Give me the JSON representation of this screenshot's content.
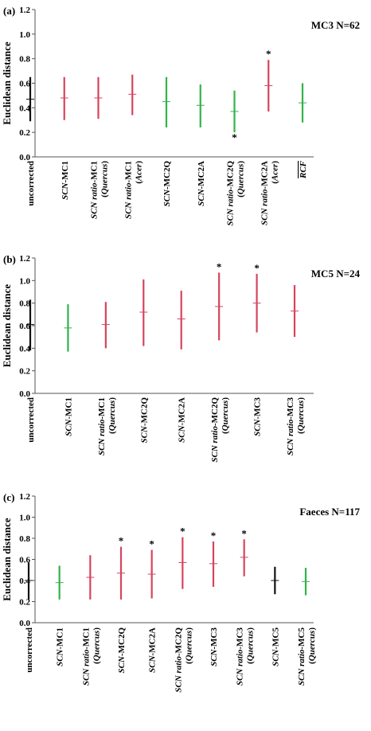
{
  "colors": {
    "black": "#111111",
    "red": "#d6445e",
    "green": "#33b24a"
  },
  "panels": [
    {
      "panel_label": "(a)",
      "header": "MC3 N=62",
      "chart_data": {
        "type": "range",
        "ylabel": "Euclidean distance",
        "ylim": [
          0,
          1.2
        ],
        "yticks": [
          "0.0",
          "0.2",
          "0.4",
          "0.6",
          "0.8",
          "1.0",
          "1.2"
        ],
        "series": [
          {
            "label": [
              {
                "t": "uncorrected",
                "i": false
              }
            ],
            "low": 0.29,
            "high": 0.65,
            "mean": 0.47,
            "color": "black",
            "sig": ""
          },
          {
            "label": [
              {
                "t": "SCN",
                "i": true
              },
              {
                "t": "-MC1",
                "i": false
              }
            ],
            "low": 0.3,
            "high": 0.65,
            "mean": 0.48,
            "color": "red",
            "sig": ""
          },
          {
            "label": [
              {
                "t": "SCN ratio",
                "i": true
              },
              {
                "t": "-MC1",
                "i": false
              },
              {
                "br": true
              },
              {
                "t": "(",
                "i": false
              },
              {
                "t": "Quercus",
                "i": true
              },
              {
                "t": ")",
                "i": false
              }
            ],
            "low": 0.31,
            "high": 0.65,
            "mean": 0.48,
            "color": "red",
            "sig": ""
          },
          {
            "label": [
              {
                "t": "SCN ratio",
                "i": true
              },
              {
                "t": "-MC1",
                "i": false
              },
              {
                "br": true
              },
              {
                "t": "(",
                "i": false
              },
              {
                "t": "Acer",
                "i": true
              },
              {
                "t": ")",
                "i": false
              }
            ],
            "low": 0.34,
            "high": 0.67,
            "mean": 0.51,
            "color": "red",
            "sig": ""
          },
          {
            "label": [
              {
                "t": "SCN",
                "i": true
              },
              {
                "t": "-MC2Q",
                "i": false
              }
            ],
            "low": 0.24,
            "high": 0.65,
            "mean": 0.45,
            "color": "green",
            "sig": ""
          },
          {
            "label": [
              {
                "t": "SCN",
                "i": true
              },
              {
                "t": "-MC2A",
                "i": false
              }
            ],
            "low": 0.24,
            "high": 0.59,
            "mean": 0.42,
            "color": "green",
            "sig": ""
          },
          {
            "label": [
              {
                "t": "SCN ratio",
                "i": true
              },
              {
                "t": "-MC2Q",
                "i": false
              },
              {
                "br": true
              },
              {
                "t": "(",
                "i": false
              },
              {
                "t": "Quercus",
                "i": true
              },
              {
                "t": ")",
                "i": false
              }
            ],
            "low": 0.2,
            "high": 0.54,
            "mean": 0.37,
            "color": "green",
            "sig": "below"
          },
          {
            "label": [
              {
                "t": "SCN ratio",
                "i": true
              },
              {
                "t": "-MC2A",
                "i": false
              },
              {
                "br": true
              },
              {
                "t": "(",
                "i": false
              },
              {
                "t": "Acer",
                "i": true
              },
              {
                "t": ")",
                "i": false
              }
            ],
            "low": 0.37,
            "high": 0.79,
            "mean": 0.58,
            "color": "red",
            "sig": "above"
          },
          {
            "label": [
              {
                "t": "RCF",
                "i": true,
                "overline": true
              }
            ],
            "low": 0.28,
            "high": 0.6,
            "mean": 0.44,
            "color": "green",
            "sig": ""
          }
        ]
      }
    },
    {
      "panel_label": "(b)",
      "header": "MC5 N=24",
      "chart_data": {
        "type": "range",
        "ylabel": "Euclidean distance",
        "ylim": [
          0,
          1.2
        ],
        "yticks": [
          "0.0",
          "0.2",
          "0.4",
          "0.6",
          "0.8",
          "1.0",
          "1.2"
        ],
        "series": [
          {
            "label": [
              {
                "t": "uncorrected",
                "i": false
              }
            ],
            "low": 0.38,
            "high": 0.83,
            "mean": 0.61,
            "color": "black",
            "sig": ""
          },
          {
            "label": [
              {
                "t": "SCN",
                "i": true
              },
              {
                "t": "-MC1",
                "i": false
              }
            ],
            "low": 0.37,
            "high": 0.79,
            "mean": 0.58,
            "color": "green",
            "sig": ""
          },
          {
            "label": [
              {
                "t": "SCN ratio",
                "i": true
              },
              {
                "t": "-MC1",
                "i": false
              },
              {
                "br": true
              },
              {
                "t": "(",
                "i": false
              },
              {
                "t": "Quercus",
                "i": true
              },
              {
                "t": ")",
                "i": false
              }
            ],
            "low": 0.4,
            "high": 0.81,
            "mean": 0.61,
            "color": "red",
            "sig": ""
          },
          {
            "label": [
              {
                "t": "SCN",
                "i": true
              },
              {
                "t": "-MC2Q",
                "i": false
              }
            ],
            "low": 0.42,
            "high": 1.01,
            "mean": 0.72,
            "color": "red",
            "sig": ""
          },
          {
            "label": [
              {
                "t": "SCN",
                "i": true
              },
              {
                "t": "-MC2A",
                "i": false
              }
            ],
            "low": 0.39,
            "high": 0.91,
            "mean": 0.66,
            "color": "red",
            "sig": ""
          },
          {
            "label": [
              {
                "t": "SCN ratio",
                "i": true
              },
              {
                "t": "-MC2Q",
                "i": false
              },
              {
                "br": true
              },
              {
                "t": "(",
                "i": false
              },
              {
                "t": "Quercus",
                "i": true
              },
              {
                "t": ")",
                "i": false
              }
            ],
            "low": 0.47,
            "high": 1.07,
            "mean": 0.77,
            "color": "red",
            "sig": "above"
          },
          {
            "label": [
              {
                "t": "SCN",
                "i": true
              },
              {
                "t": "-MC3",
                "i": false
              }
            ],
            "low": 0.54,
            "high": 1.06,
            "mean": 0.8,
            "color": "red",
            "sig": "above"
          },
          {
            "label": [
              {
                "t": "SCN ratio",
                "i": true
              },
              {
                "t": "-MC3",
                "i": false
              },
              {
                "br": true
              },
              {
                "t": "(",
                "i": false
              },
              {
                "t": "Quercus",
                "i": true
              },
              {
                "t": ")",
                "i": false
              }
            ],
            "low": 0.5,
            "high": 0.96,
            "mean": 0.73,
            "color": "red",
            "sig": ""
          }
        ]
      }
    },
    {
      "panel_label": "(c)",
      "header": "Faeces N=117",
      "chart_data": {
        "type": "range",
        "ylabel": "Euclidean distance",
        "ylim": [
          0,
          1.2
        ],
        "yticks": [
          "0.0",
          "0.2",
          "0.4",
          "0.6",
          "0.8",
          "1.0",
          "1.2"
        ],
        "series": [
          {
            "label": [
              {
                "t": "uncorrected",
                "i": false
              }
            ],
            "low": 0.22,
            "high": 0.57,
            "mean": 0.4,
            "color": "black",
            "sig": ""
          },
          {
            "label": [
              {
                "t": "SCN",
                "i": true
              },
              {
                "t": "-MC1",
                "i": false
              }
            ],
            "low": 0.22,
            "high": 0.54,
            "mean": 0.38,
            "color": "green",
            "sig": ""
          },
          {
            "label": [
              {
                "t": "SCN ratio",
                "i": true
              },
              {
                "t": "-MC1",
                "i": false
              },
              {
                "br": true
              },
              {
                "t": "(",
                "i": false
              },
              {
                "t": "Quercus",
                "i": true
              },
              {
                "t": ")",
                "i": false
              }
            ],
            "low": 0.22,
            "high": 0.64,
            "mean": 0.43,
            "color": "red",
            "sig": ""
          },
          {
            "label": [
              {
                "t": "SCN",
                "i": true
              },
              {
                "t": "-MC2Q",
                "i": false
              }
            ],
            "low": 0.22,
            "high": 0.72,
            "mean": 0.47,
            "color": "red",
            "sig": "above"
          },
          {
            "label": [
              {
                "t": "SCN",
                "i": true
              },
              {
                "t": "-MC2A",
                "i": false
              }
            ],
            "low": 0.23,
            "high": 0.69,
            "mean": 0.46,
            "color": "red",
            "sig": "above"
          },
          {
            "label": [
              {
                "t": "SCN ratio",
                "i": true
              },
              {
                "t": "-MC2Q",
                "i": false
              },
              {
                "br": true
              },
              {
                "t": "(",
                "i": false
              },
              {
                "t": "Quercus",
                "i": true
              },
              {
                "t": ")",
                "i": false
              }
            ],
            "low": 0.32,
            "high": 0.81,
            "mean": 0.57,
            "color": "red",
            "sig": "above"
          },
          {
            "label": [
              {
                "t": "SCN",
                "i": true
              },
              {
                "t": "-MC3",
                "i": false
              }
            ],
            "low": 0.34,
            "high": 0.77,
            "mean": 0.56,
            "color": "red",
            "sig": "above"
          },
          {
            "label": [
              {
                "t": "SCN ratio",
                "i": true
              },
              {
                "t": "-MC3",
                "i": false
              },
              {
                "br": true
              },
              {
                "t": "(",
                "i": false
              },
              {
                "t": "Quercus",
                "i": true
              },
              {
                "t": ")",
                "i": false
              }
            ],
            "low": 0.44,
            "high": 0.79,
            "mean": 0.62,
            "color": "red",
            "sig": "above"
          },
          {
            "label": [
              {
                "t": "SCN",
                "i": true
              },
              {
                "t": "-MC5",
                "i": false
              }
            ],
            "low": 0.27,
            "high": 0.53,
            "mean": 0.4,
            "color": "black",
            "sig": ""
          },
          {
            "label": [
              {
                "t": "SCN ratio",
                "i": true
              },
              {
                "t": "-MC5",
                "i": false
              },
              {
                "br": true
              },
              {
                "t": "(",
                "i": false
              },
              {
                "t": "Quercus",
                "i": true
              },
              {
                "t": ")",
                "i": false
              }
            ],
            "low": 0.26,
            "high": 0.52,
            "mean": 0.39,
            "color": "green",
            "sig": ""
          }
        ]
      }
    }
  ],
  "sig_marker": "*"
}
